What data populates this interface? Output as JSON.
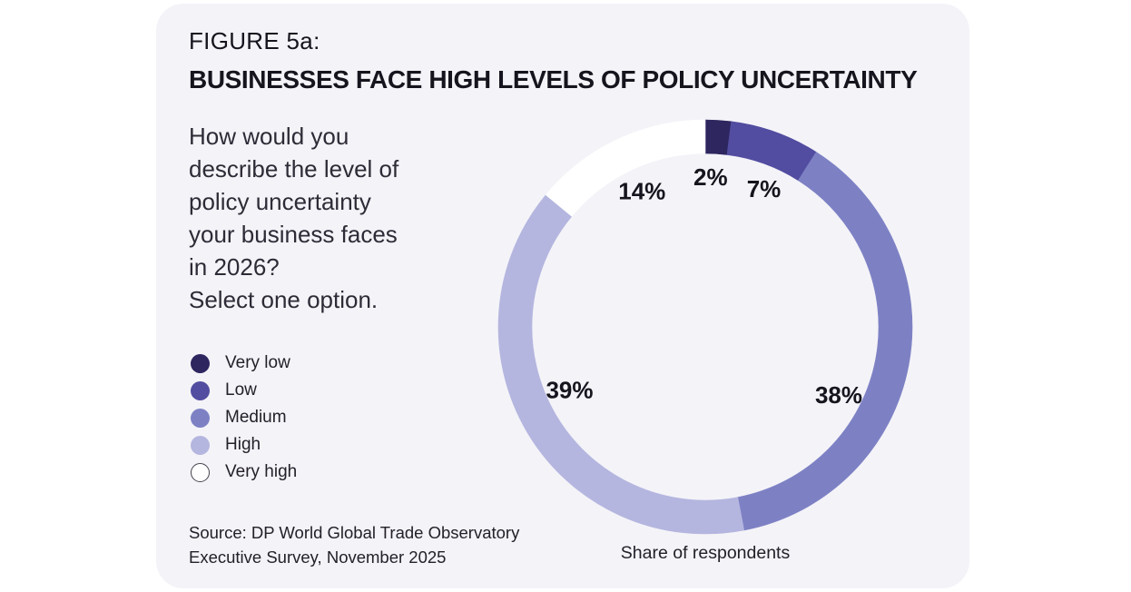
{
  "card": {
    "figure_label": "FIGURE 5a:",
    "title": "BUSINESSES FACE HIGH LEVELS OF POLICY UNCERTAINTY",
    "question_lines": [
      "How would you",
      "describe the level of",
      "policy uncertainty",
      "your business faces",
      "in 2026?",
      "Select one option."
    ],
    "source_lines": [
      "Source: DP World Global Trade Observatory",
      "Executive Survey, November 2025"
    ]
  },
  "legend": {
    "items": [
      {
        "label": "Very low",
        "color": "#2d265f",
        "outlined": false
      },
      {
        "label": "Low",
        "color": "#524da0",
        "outlined": false
      },
      {
        "label": "Medium",
        "color": "#7d81c4",
        "outlined": false
      },
      {
        "label": "High",
        "color": "#b4b6df",
        "outlined": false
      },
      {
        "label": "Very high",
        "color": "#ffffff",
        "outlined": true
      }
    ]
  },
  "chart_data": {
    "type": "pie",
    "variant": "donut",
    "title": "BUSINESSES FACE HIGH LEVELS OF POLICY UNCERTAINTY",
    "categories": [
      "Very low",
      "Low",
      "Medium",
      "High",
      "Very high"
    ],
    "values": [
      2,
      7,
      38,
      39,
      14
    ],
    "unit": "%",
    "slice_labels": [
      "2%",
      "7%",
      "38%",
      "39%",
      "14%"
    ],
    "colors": [
      "#2d265f",
      "#524da0",
      "#7d81c4",
      "#b4b6df",
      "#ffffff"
    ],
    "start_angle_deg": 0,
    "direction": "clockwise",
    "label_angles_deg": [
      2,
      23,
      117,
      245,
      335
    ],
    "label_radius": 165,
    "outer_radius": 228,
    "inner_radius": 191,
    "legend_position": "left",
    "caption": "Share of respondents"
  },
  "colors": {
    "card_bg": "#f4f3f8",
    "page_bg": "#ffffff",
    "title_text": "#16141d",
    "body_text": "#232029"
  }
}
